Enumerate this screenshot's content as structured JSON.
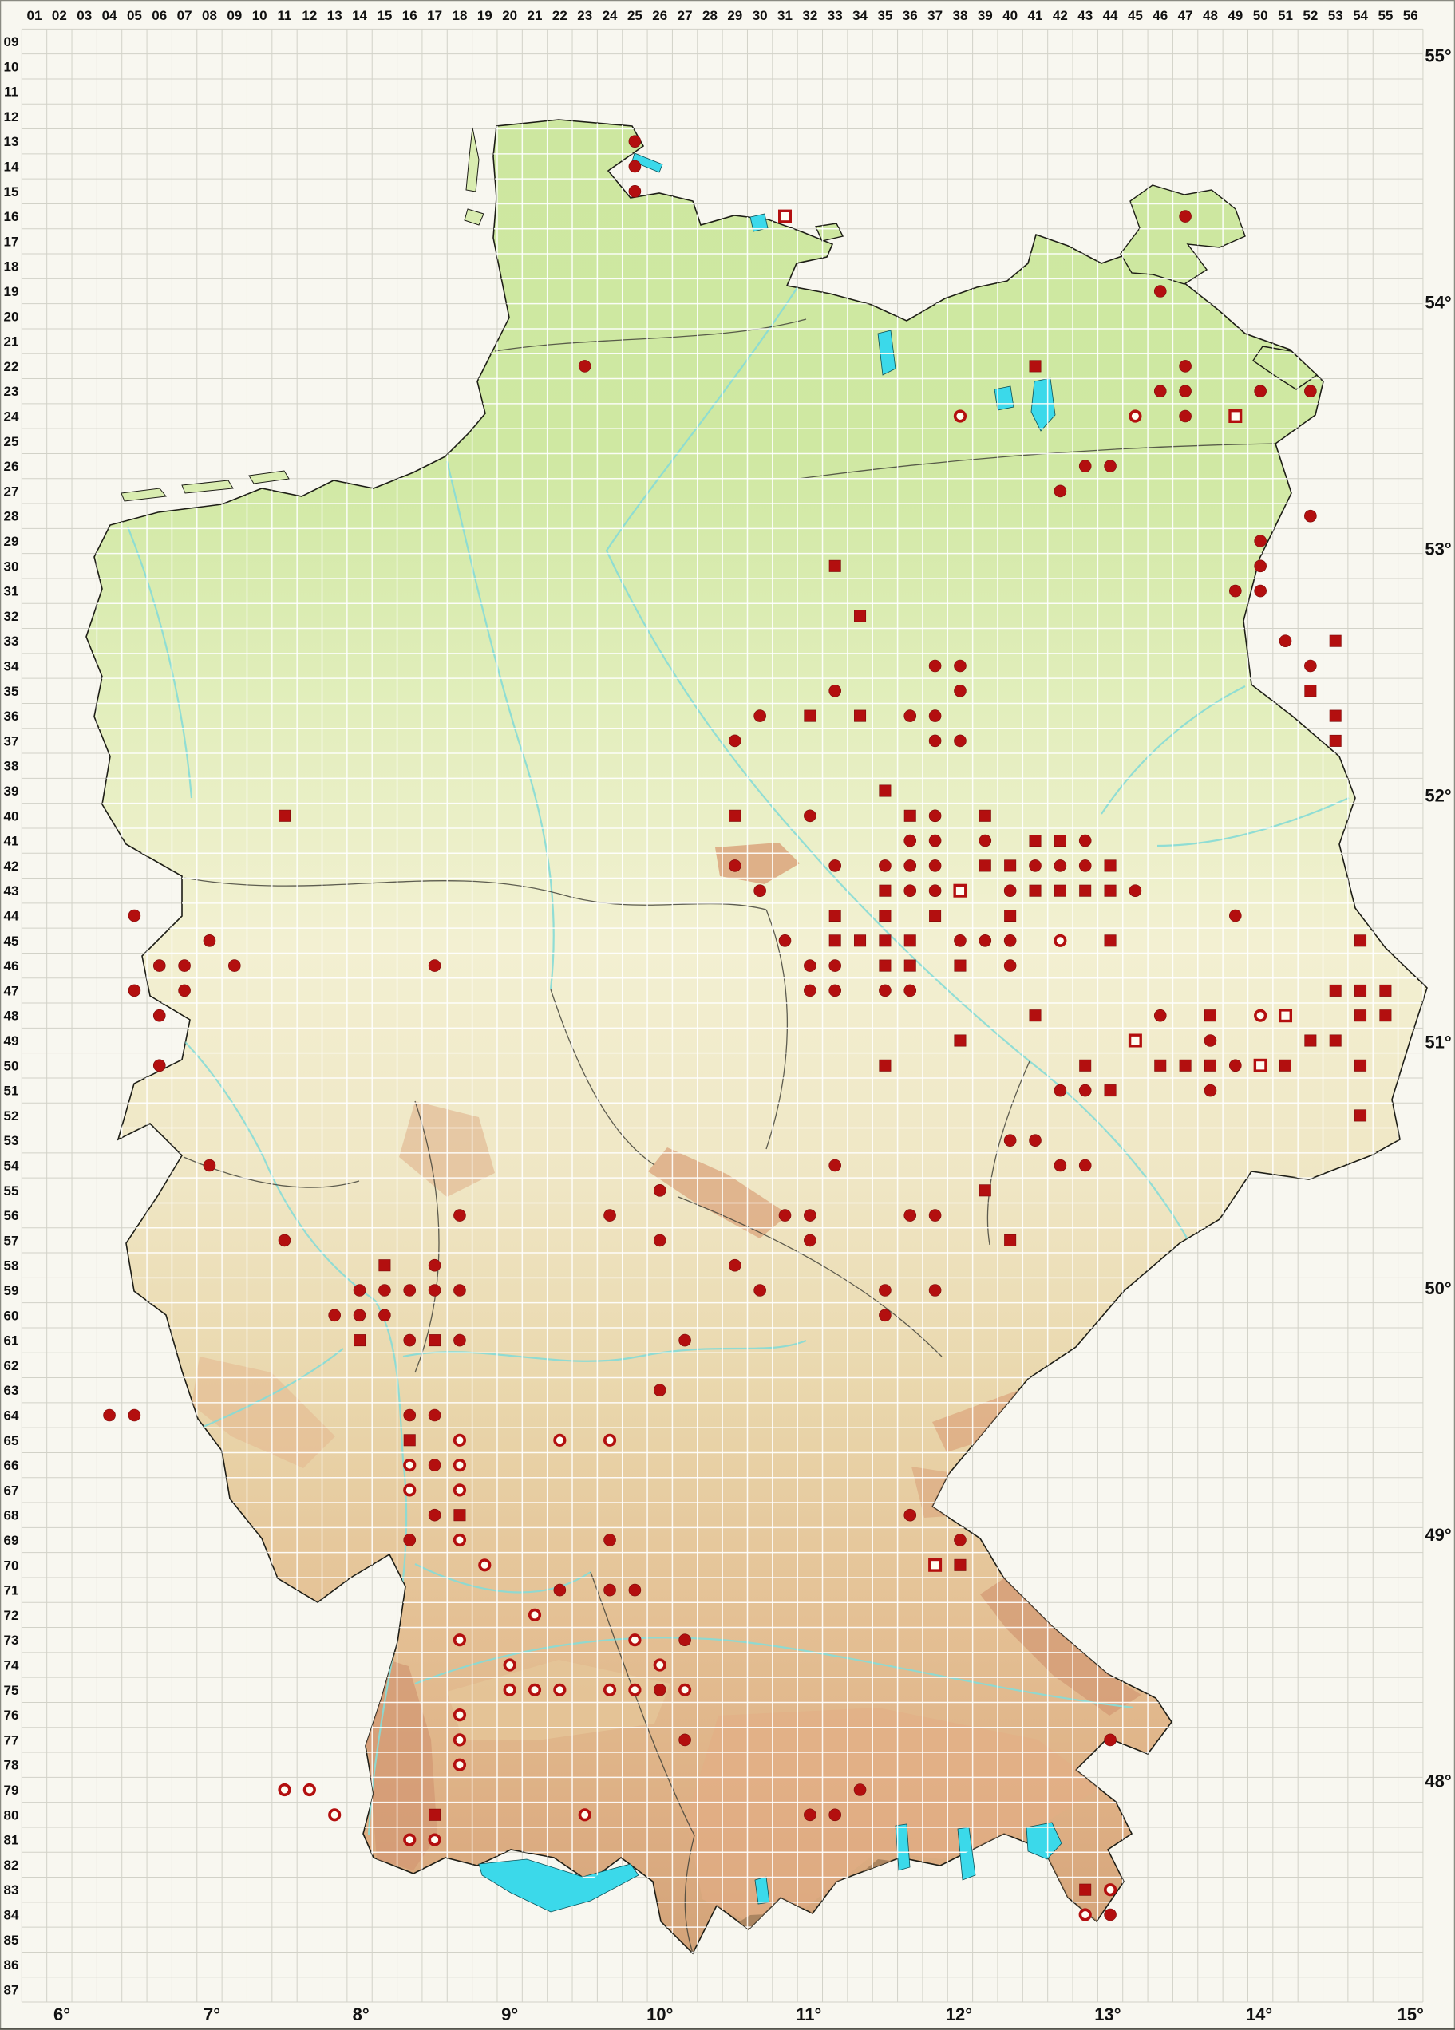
{
  "map": {
    "description": "Grid-based species distribution map of Germany (MTB quadrant grid) with elevation shading and four record marker types",
    "marker_types": [
      {
        "key": "filled_circle",
        "name": "filled round record marker"
      },
      {
        "key": "filled_square",
        "name": "filled square record marker"
      },
      {
        "key": "open_circle",
        "name": "open round record marker"
      },
      {
        "key": "open_square",
        "name": "open square record marker"
      }
    ]
  },
  "colors": {
    "marker_red": "#b30f0f",
    "marker_red_dark": "#7a0909",
    "open_marker_center": "#fffdf2",
    "sea_background": "#f8f7f0",
    "grid_gray": "#d2d2c8",
    "grid_white": "#ffffff",
    "land_north_green": "#cde7a0",
    "land_center_cream": "#f3f0d2",
    "land_south_tan": "#e7d3a8",
    "upland_salmon": "#dba47c",
    "alps_brown": "#a5815c",
    "lake_cyan": "#3bd9ea",
    "river_cyan": "#86dcd6",
    "border_dark": "#1d1d16"
  },
  "grid": {
    "col_labels": [
      "01",
      "02",
      "03",
      "04",
      "05",
      "06",
      "07",
      "08",
      "09",
      "10",
      "11",
      "12",
      "13",
      "14",
      "15",
      "16",
      "17",
      "18",
      "19",
      "20",
      "21",
      "22",
      "23",
      "24",
      "25",
      "26",
      "27",
      "28",
      "29",
      "30",
      "31",
      "32",
      "33",
      "34",
      "35",
      "36",
      "37",
      "38",
      "39",
      "40",
      "41",
      "42",
      "43",
      "44",
      "45",
      "46",
      "47",
      "48",
      "49",
      "50",
      "51",
      "52",
      "53",
      "54",
      "55",
      "56"
    ],
    "row_labels": [
      "09",
      "10",
      "11",
      "12",
      "13",
      "14",
      "15",
      "16",
      "17",
      "18",
      "19",
      "20",
      "21",
      "22",
      "23",
      "24",
      "25",
      "26",
      "27",
      "28",
      "29",
      "30",
      "31",
      "32",
      "33",
      "34",
      "35",
      "36",
      "37",
      "38",
      "39",
      "40",
      "41",
      "42",
      "43",
      "44",
      "45",
      "46",
      "47",
      "48",
      "49",
      "50",
      "51",
      "52",
      "53",
      "54",
      "55",
      "56",
      "57",
      "58",
      "59",
      "60",
      "61",
      "62",
      "63",
      "64",
      "65",
      "66",
      "67",
      "68",
      "69",
      "70",
      "71",
      "72",
      "73",
      "74",
      "75",
      "76",
      "77",
      "78",
      "79",
      "80",
      "81",
      "82",
      "83",
      "84",
      "85",
      "86",
      "87"
    ]
  },
  "lon_labels": [
    {
      "text": "6°",
      "col": 2.1
    },
    {
      "text": "7°",
      "col": 8.1
    },
    {
      "text": "8°",
      "col": 14.05
    },
    {
      "text": "9°",
      "col": 20.0
    },
    {
      "text": "10°",
      "col": 26.0
    },
    {
      "text": "11°",
      "col": 31.95
    },
    {
      "text": "12°",
      "col": 37.95
    },
    {
      "text": "13°",
      "col": 43.9
    },
    {
      "text": "14°",
      "col": 49.95
    },
    {
      "text": "15°",
      "col": 56.0
    }
  ],
  "lat_labels": [
    {
      "text": "55°",
      "row": 9.56
    },
    {
      "text": "54°",
      "row": 19.43
    },
    {
      "text": "53°",
      "row": 29.3
    },
    {
      "text": "52°",
      "row": 39.17
    },
    {
      "text": "51°",
      "row": 49.04
    },
    {
      "text": "50°",
      "row": 58.9
    },
    {
      "text": "49°",
      "row": 68.77
    },
    {
      "text": "48°",
      "row": 78.64
    }
  ],
  "markers": {
    "filled_circle": [
      [
        25,
        13
      ],
      [
        25,
        14
      ],
      [
        25,
        15
      ],
      [
        47,
        16
      ],
      [
        46,
        19
      ],
      [
        23,
        22
      ],
      [
        47,
        22
      ],
      [
        50,
        23
      ],
      [
        52,
        23
      ],
      [
        46,
        23
      ],
      [
        47,
        23
      ],
      [
        47,
        24
      ],
      [
        43,
        26
      ],
      [
        44,
        26
      ],
      [
        42,
        27
      ],
      [
        52,
        28
      ],
      [
        50,
        29
      ],
      [
        50,
        30
      ],
      [
        49,
        31
      ],
      [
        50,
        31
      ],
      [
        51,
        33
      ],
      [
        52,
        34
      ],
      [
        37,
        34
      ],
      [
        38,
        34
      ],
      [
        33,
        35
      ],
      [
        38,
        35
      ],
      [
        30,
        36
      ],
      [
        36,
        36
      ],
      [
        37,
        36
      ],
      [
        29,
        37
      ],
      [
        37,
        37
      ],
      [
        38,
        37
      ],
      [
        32,
        40
      ],
      [
        37,
        40
      ],
      [
        36,
        41
      ],
      [
        37,
        41
      ],
      [
        39,
        41
      ],
      [
        43,
        41
      ],
      [
        29,
        42
      ],
      [
        33,
        42
      ],
      [
        35,
        42
      ],
      [
        36,
        42
      ],
      [
        37,
        42
      ],
      [
        41,
        42
      ],
      [
        42,
        42
      ],
      [
        43,
        42
      ],
      [
        30,
        43
      ],
      [
        36,
        43
      ],
      [
        37,
        43
      ],
      [
        40,
        43
      ],
      [
        45,
        43
      ],
      [
        5,
        44
      ],
      [
        49,
        44
      ],
      [
        8,
        45
      ],
      [
        31,
        45
      ],
      [
        38,
        45
      ],
      [
        39,
        45
      ],
      [
        40,
        45
      ],
      [
        6,
        46
      ],
      [
        7,
        46
      ],
      [
        9,
        46
      ],
      [
        17,
        46
      ],
      [
        32,
        46
      ],
      [
        33,
        46
      ],
      [
        40,
        46
      ],
      [
        5,
        47
      ],
      [
        7,
        47
      ],
      [
        32,
        47
      ],
      [
        33,
        47
      ],
      [
        35,
        47
      ],
      [
        36,
        47
      ],
      [
        6,
        48
      ],
      [
        46,
        48
      ],
      [
        48,
        49
      ],
      [
        6,
        50
      ],
      [
        49,
        50
      ],
      [
        42,
        51
      ],
      [
        43,
        51
      ],
      [
        48,
        51
      ],
      [
        40,
        53
      ],
      [
        41,
        53
      ],
      [
        8,
        54
      ],
      [
        33,
        54
      ],
      [
        42,
        54
      ],
      [
        43,
        54
      ],
      [
        26,
        55
      ],
      [
        18,
        56
      ],
      [
        24,
        56
      ],
      [
        31,
        56
      ],
      [
        32,
        56
      ],
      [
        36,
        56
      ],
      [
        37,
        56
      ],
      [
        11,
        57
      ],
      [
        26,
        57
      ],
      [
        32,
        57
      ],
      [
        17,
        58
      ],
      [
        29,
        58
      ],
      [
        14,
        59
      ],
      [
        15,
        59
      ],
      [
        16,
        59
      ],
      [
        17,
        59
      ],
      [
        18,
        59
      ],
      [
        30,
        59
      ],
      [
        35,
        59
      ],
      [
        37,
        59
      ],
      [
        13,
        60
      ],
      [
        14,
        60
      ],
      [
        15,
        60
      ],
      [
        35,
        60
      ],
      [
        16,
        61
      ],
      [
        18,
        61
      ],
      [
        27,
        61
      ],
      [
        26,
        63
      ],
      [
        4,
        64
      ],
      [
        5,
        64
      ],
      [
        16,
        64
      ],
      [
        17,
        64
      ],
      [
        17,
        66
      ],
      [
        17,
        68
      ],
      [
        36,
        68
      ],
      [
        16,
        69
      ],
      [
        24,
        69
      ],
      [
        38,
        69
      ],
      [
        22,
        71
      ],
      [
        24,
        71
      ],
      [
        25,
        71
      ],
      [
        27,
        73
      ],
      [
        26,
        75
      ],
      [
        27,
        77
      ],
      [
        44,
        77
      ],
      [
        34,
        79
      ],
      [
        32,
        80
      ],
      [
        33,
        80
      ],
      [
        44,
        84
      ]
    ],
    "filled_square": [
      [
        41,
        22
      ],
      [
        33,
        30
      ],
      [
        34,
        32
      ],
      [
        53,
        33
      ],
      [
        52,
        35
      ],
      [
        32,
        36
      ],
      [
        34,
        36
      ],
      [
        53,
        36
      ],
      [
        53,
        37
      ],
      [
        35,
        39
      ],
      [
        29,
        40
      ],
      [
        11,
        40
      ],
      [
        36,
        40
      ],
      [
        39,
        40
      ],
      [
        41,
        41
      ],
      [
        42,
        41
      ],
      [
        39,
        42
      ],
      [
        40,
        42
      ],
      [
        44,
        42
      ],
      [
        35,
        43
      ],
      [
        41,
        43
      ],
      [
        42,
        43
      ],
      [
        43,
        43
      ],
      [
        44,
        43
      ],
      [
        33,
        44
      ],
      [
        35,
        44
      ],
      [
        37,
        44
      ],
      [
        40,
        44
      ],
      [
        33,
        45
      ],
      [
        34,
        45
      ],
      [
        35,
        45
      ],
      [
        36,
        45
      ],
      [
        44,
        45
      ],
      [
        54,
        45
      ],
      [
        35,
        46
      ],
      [
        36,
        46
      ],
      [
        38,
        46
      ],
      [
        53,
        47
      ],
      [
        54,
        47
      ],
      [
        55,
        47
      ],
      [
        41,
        48
      ],
      [
        48,
        48
      ],
      [
        54,
        48
      ],
      [
        55,
        48
      ],
      [
        38,
        49
      ],
      [
        52,
        49
      ],
      [
        53,
        49
      ],
      [
        35,
        50
      ],
      [
        43,
        50
      ],
      [
        46,
        50
      ],
      [
        47,
        50
      ],
      [
        48,
        50
      ],
      [
        51,
        50
      ],
      [
        54,
        50
      ],
      [
        44,
        51
      ],
      [
        54,
        52
      ],
      [
        39,
        55
      ],
      [
        40,
        57
      ],
      [
        15,
        58
      ],
      [
        14,
        61
      ],
      [
        17,
        61
      ],
      [
        16,
        65
      ],
      [
        18,
        68
      ],
      [
        38,
        70
      ],
      [
        17,
        80
      ],
      [
        43,
        83
      ]
    ],
    "open_circle": [
      [
        38,
        24
      ],
      [
        45,
        24
      ],
      [
        42,
        45
      ],
      [
        50,
        48
      ],
      [
        18,
        65
      ],
      [
        22,
        65
      ],
      [
        24,
        65
      ],
      [
        16,
        66
      ],
      [
        18,
        66
      ],
      [
        16,
        67
      ],
      [
        18,
        67
      ],
      [
        18,
        69
      ],
      [
        19,
        70
      ],
      [
        21,
        72
      ],
      [
        18,
        73
      ],
      [
        25,
        73
      ],
      [
        20,
        74
      ],
      [
        26,
        74
      ],
      [
        20,
        75
      ],
      [
        21,
        75
      ],
      [
        22,
        75
      ],
      [
        24,
        75
      ],
      [
        25,
        75
      ],
      [
        27,
        75
      ],
      [
        18,
        76
      ],
      [
        18,
        77
      ],
      [
        18,
        78
      ],
      [
        11,
        79
      ],
      [
        12,
        79
      ],
      [
        13,
        80
      ],
      [
        23,
        80
      ],
      [
        16,
        81
      ],
      [
        17,
        81
      ],
      [
        44,
        83
      ],
      [
        43,
        84
      ]
    ],
    "open_square": [
      [
        31,
        16
      ],
      [
        49,
        24
      ],
      [
        38,
        43
      ],
      [
        51,
        48
      ],
      [
        45,
        49
      ],
      [
        50,
        50
      ],
      [
        37,
        70
      ]
    ]
  }
}
